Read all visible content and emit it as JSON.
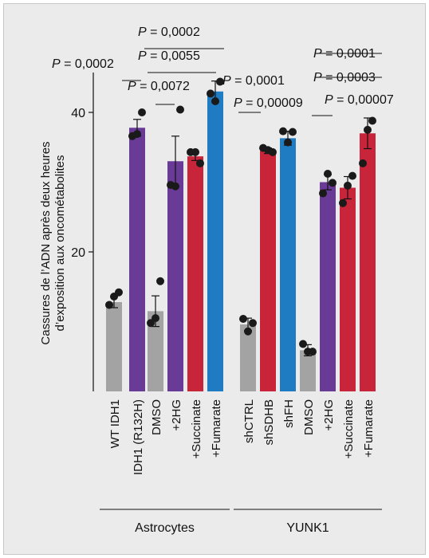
{
  "chart_data": {
    "type": "bar",
    "ylabel_line1": "Cassures de l’ADN après deux heures",
    "ylabel_line2": "d’exposition aux oncométabolites",
    "ylim": [
      0,
      45
    ],
    "yticks": [
      20,
      40
    ],
    "grid": false,
    "colors": {
      "grey": "#a3a3a3",
      "purple": "#6a3a97",
      "red": "#c8253a",
      "blue": "#1f7cc2",
      "dot": "#1a1a1a"
    },
    "bars": [
      {
        "label": "WT IDH1",
        "group": "Astrocytes",
        "color": "grey",
        "value": 12.8,
        "err": 0.8,
        "points": [
          12.4,
          13.6,
          14.2
        ]
      },
      {
        "label": "IDH1 (R132H)",
        "group": "Astrocytes",
        "color": "purple",
        "value": 37.8,
        "err": 1.2,
        "points": [
          36.6,
          36.9,
          40.0
        ]
      },
      {
        "label": "DMSO",
        "group": "Astrocytes",
        "color": "grey",
        "value": 11.5,
        "err": 2.2,
        "points": [
          9.8,
          10.5,
          15.8
        ]
      },
      {
        "label": "+2HG",
        "group": "Astrocytes",
        "color": "purple",
        "value": 33.0,
        "err": 3.6,
        "points": [
          29.6,
          29.4,
          40.4
        ]
      },
      {
        "label": "+Succinate",
        "group": "Astrocytes",
        "color": "red",
        "value": 33.7,
        "err": 0.6,
        "points": [
          34.3,
          34.3,
          32.7
        ]
      },
      {
        "label": "+Fumarate",
        "group": "Astrocytes",
        "color": "blue",
        "value": 43.0,
        "err": 1.5,
        "points": [
          42.7,
          41.6,
          44.4
        ]
      },
      {
        "label": "shCTRL",
        "group": "YUNK1",
        "color": "grey",
        "value": 9.6,
        "err": 0.9,
        "points": [
          10.4,
          8.6,
          9.8
        ]
      },
      {
        "label": "shSDHB",
        "group": "YUNK1",
        "color": "red",
        "value": 34.5,
        "err": 0.4,
        "points": [
          34.9,
          34.6,
          34.3
        ]
      },
      {
        "label": "shFH",
        "group": "YUNK1",
        "color": "blue",
        "value": 36.3,
        "err": 1.0,
        "points": [
          37.3,
          35.7,
          37.2
        ]
      },
      {
        "label": "DMSO",
        "group": "YUNK1",
        "color": "grey",
        "value": 5.9,
        "err": 0.8,
        "points": [
          6.8,
          5.7,
          5.7
        ]
      },
      {
        "label": "+2HG",
        "group": "YUNK1",
        "color": "purple",
        "value": 30.0,
        "err": 1.1,
        "points": [
          28.4,
          31.2,
          29.9
        ]
      },
      {
        "label": "+Succinate",
        "group": "YUNK1",
        "color": "red",
        "value": 29.2,
        "err": 1.6,
        "points": [
          27.0,
          29.5,
          30.9
        ]
      },
      {
        "label": "+Fumarate",
        "group": "YUNK1",
        "color": "red",
        "value": 37.0,
        "err": 2.2,
        "points": [
          32.7,
          37.5,
          38.8
        ]
      }
    ],
    "groups": [
      {
        "name": "Astrocytes",
        "first": 0,
        "last": 5
      },
      {
        "name": "YUNK1",
        "first": 6,
        "last": 12
      }
    ],
    "comparisons": [
      {
        "text": "P = 0,0002",
        "from": 0,
        "to": 1,
        "label_italic": "P",
        "label_rest": " = 0,0002",
        "anchor": "start-left"
      },
      {
        "text": "P = 0,0072",
        "from": 2,
        "to": 3,
        "label_italic": "P",
        "label_rest": " = 0,0072",
        "anchor": "start-left"
      },
      {
        "text": "P = 0,0055",
        "from": 2,
        "to": 4,
        "label_italic": "P",
        "label_rest": " = 0,0055",
        "anchor": "center"
      },
      {
        "text": "P = 0,0002",
        "from": 2,
        "to": 5,
        "label_italic": "P",
        "label_rest": " = 0,0002",
        "anchor": "center"
      },
      {
        "text": "P = 0,0001",
        "from": 6,
        "to": 7,
        "label_italic": "P",
        "label_rest": " = 0,0001",
        "anchor": "start-left"
      },
      {
        "text": "P = 0,00009",
        "from": 6,
        "to": 8,
        "label_italic": "P",
        "label_rest": " = 0,00009",
        "anchor": "start-left"
      },
      {
        "text": "P = 0,00007",
        "from": 9,
        "to": 10,
        "label_italic": "P",
        "label_rest": " = 0,00007",
        "anchor": "center-right"
      },
      {
        "text": "P = 0,0003",
        "from": 9,
        "to": 11,
        "label_italic": "P",
        "label_rest": " = 0,0003",
        "anchor": "center"
      },
      {
        "text": "P = 0,0001",
        "from": 9,
        "to": 12,
        "label_italic": "P",
        "label_rest": " = 0,0001",
        "anchor": "center"
      }
    ]
  }
}
